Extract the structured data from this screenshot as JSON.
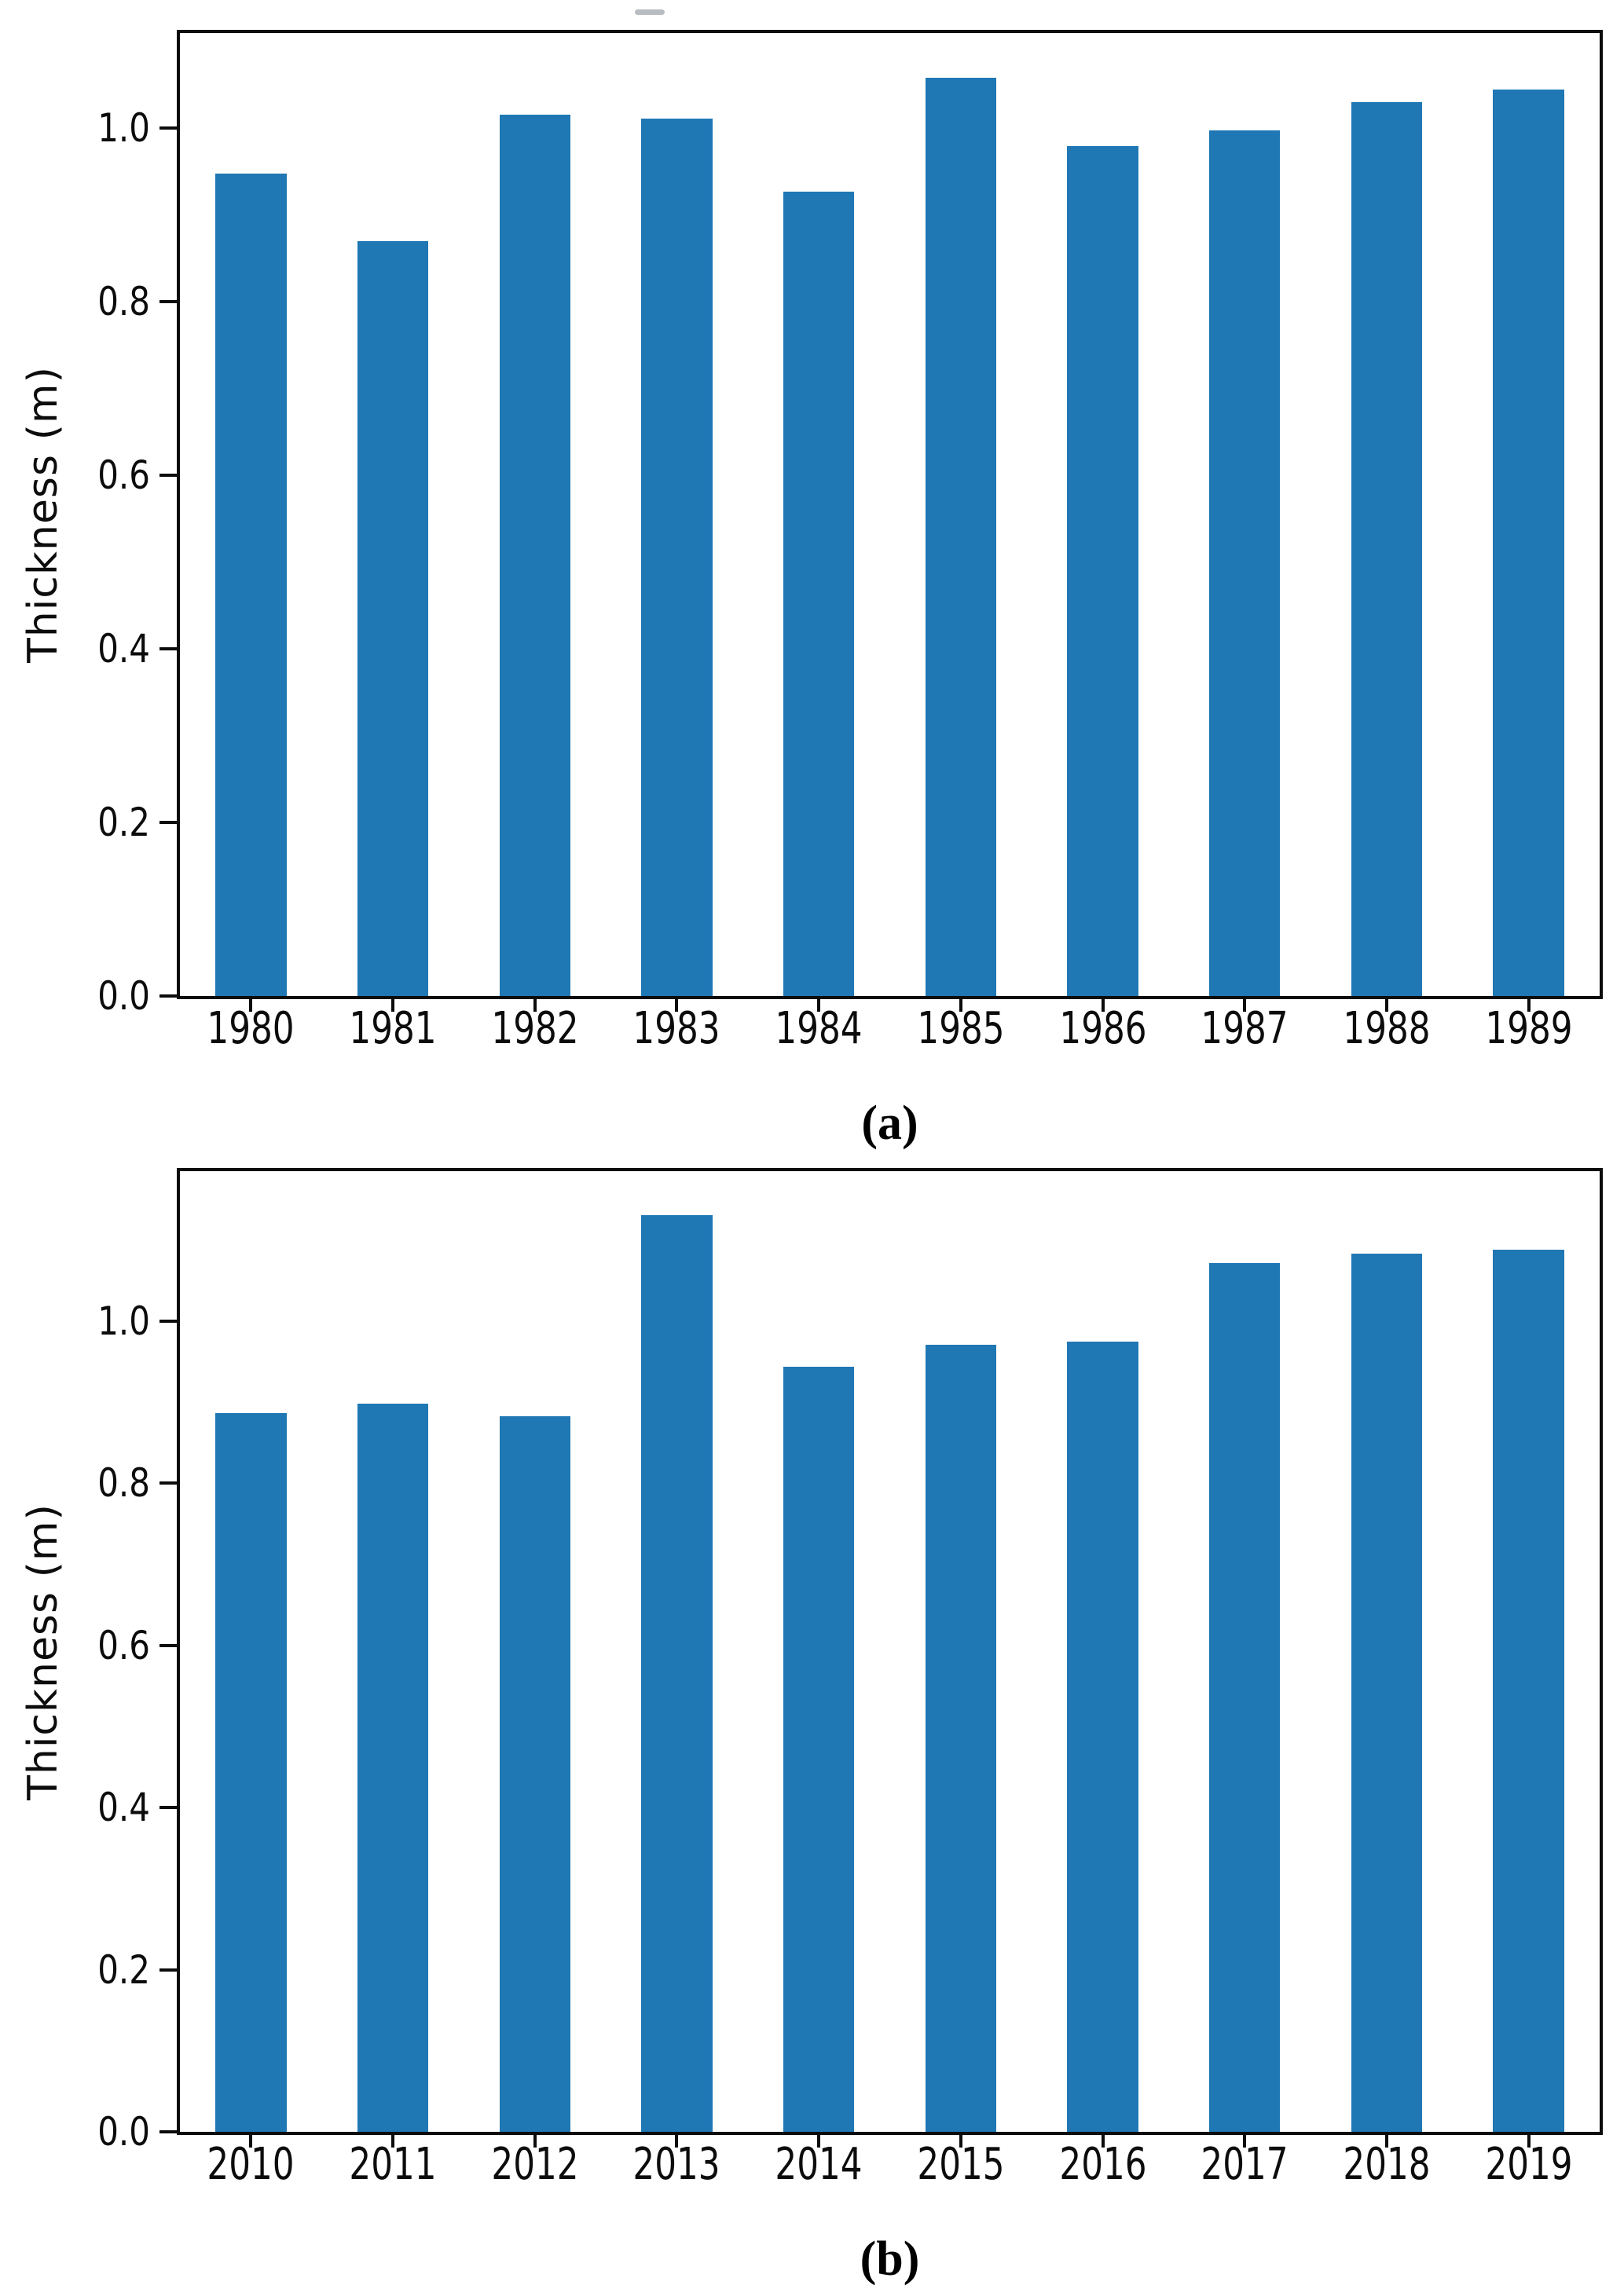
{
  "figure": {
    "background": "#ffffff",
    "axis_color": "#0c0c0c",
    "bar_color": "#1f77b4",
    "panel_a_caption": "(a)",
    "panel_b_caption": "(b)"
  },
  "chart_data": [
    {
      "type": "bar",
      "panel": "a",
      "title": "",
      "xlabel": "",
      "ylabel": "Thickness (m)",
      "categories": [
        "1980",
        "1981",
        "1982",
        "1983",
        "1984",
        "1985",
        "1986",
        "1987",
        "1988",
        "1989"
      ],
      "values": [
        0.948,
        0.87,
        1.016,
        1.011,
        0.927,
        1.058,
        0.98,
        0.998,
        1.03,
        1.045
      ],
      "ylim": [
        0,
        1.11
      ],
      "yticks": [
        0.0,
        0.2,
        0.4,
        0.6,
        0.8,
        1.0
      ],
      "ytick_labels": [
        "0.0",
        "0.2",
        "0.4",
        "0.6",
        "0.8",
        "1.0"
      ],
      "bar_width_fraction": 0.5,
      "grid": false,
      "legend": null,
      "bar_color": "#1f77b4"
    },
    {
      "type": "bar",
      "panel": "b",
      "title": "",
      "xlabel": "",
      "ylabel": "Thickness (m)",
      "categories": [
        "2010",
        "2011",
        "2012",
        "2013",
        "2014",
        "2015",
        "2016",
        "2017",
        "2018",
        "2019"
      ],
      "values": [
        0.887,
        0.898,
        0.883,
        1.131,
        0.944,
        0.971,
        0.975,
        1.072,
        1.083,
        1.088
      ],
      "ylim": [
        0,
        1.185
      ],
      "yticks": [
        0.0,
        0.2,
        0.4,
        0.6,
        0.8,
        1.0
      ],
      "ytick_labels": [
        "0.0",
        "0.2",
        "0.4",
        "0.6",
        "0.8",
        "1.0"
      ],
      "bar_width_fraction": 0.5,
      "grid": false,
      "legend": null,
      "bar_color": "#1f77b4"
    }
  ]
}
